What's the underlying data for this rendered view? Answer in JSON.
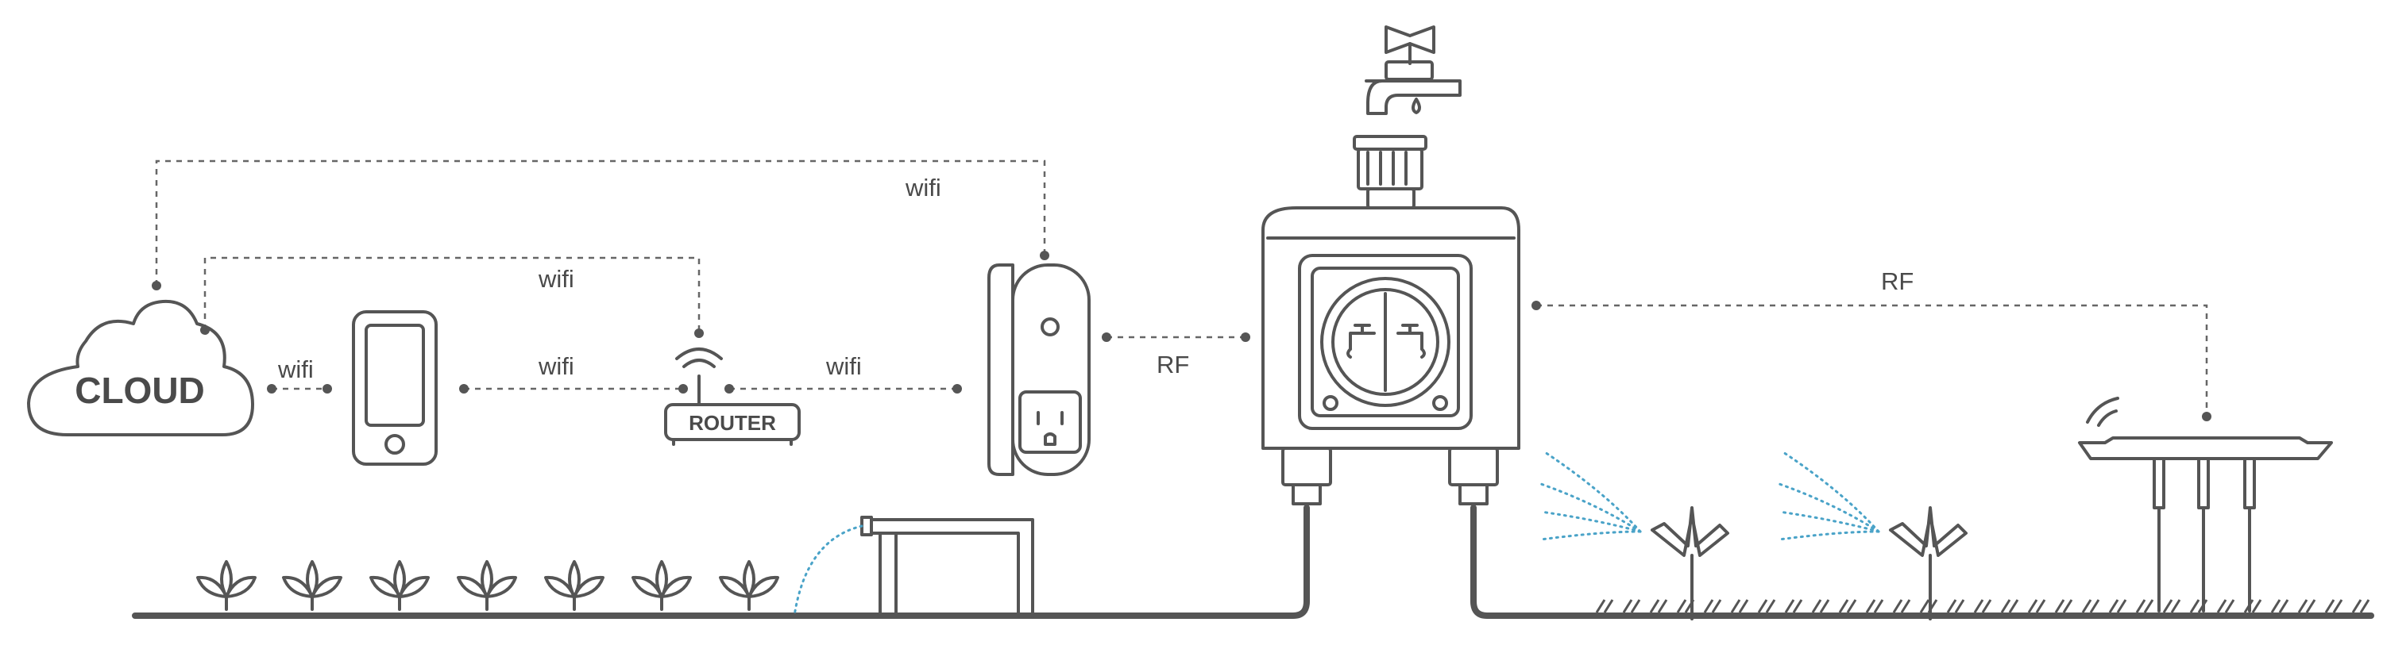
{
  "labels": {
    "cloud": "CLOUD",
    "router": "ROUTER",
    "wifi_cloud_phone": "wifi",
    "wifi_top": "wifi",
    "wifi_mid": "wifi",
    "wifi_phone_router": "wifi",
    "wifi_router_plug": "wifi",
    "rf_plug_timer": "RF",
    "rf_timer_sensor": "RF"
  },
  "colors": {
    "line": "#555555",
    "spray": "#4aa3c8",
    "background": "#ffffff"
  },
  "icons": [
    "cloud-icon",
    "phone-icon",
    "router-icon",
    "wifi-signal-icon",
    "smart-plug-icon",
    "water-tap-icon",
    "water-timer-icon",
    "faucet-icon",
    "sprinkler-icon",
    "soil-sensor-icon",
    "plant-icon"
  ]
}
